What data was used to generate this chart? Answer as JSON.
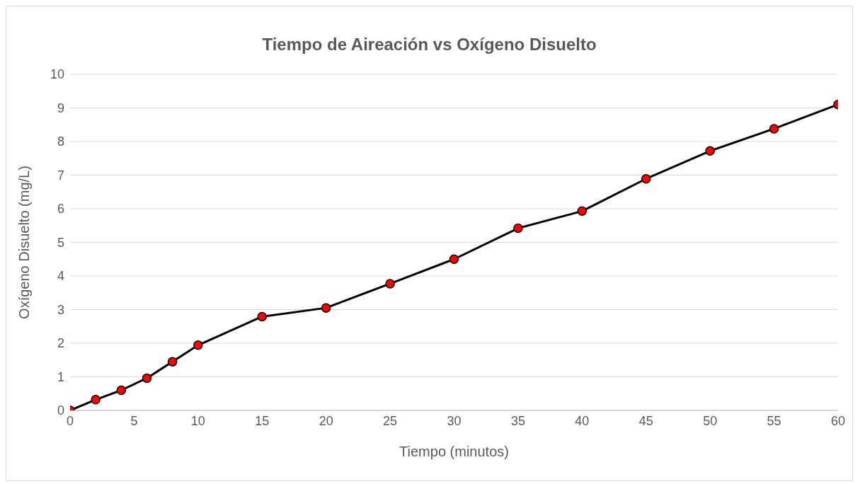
{
  "chart_data": {
    "type": "line",
    "title": "Tiempo de Aireación vs Oxígeno Disuelto",
    "xlabel": "Tiempo (minutos)",
    "ylabel": "Oxígeno Disuelto (mg/L)",
    "x": [
      0,
      2,
      4,
      6,
      8,
      10,
      15,
      20,
      25,
      30,
      35,
      40,
      45,
      50,
      55,
      60
    ],
    "series": [
      {
        "color": "#000000",
        "values": [
          0,
          0.32,
          0.6,
          0.96,
          1.45,
          1.94,
          2.79,
          3.05,
          3.77,
          4.5,
          5.42,
          5.93,
          6.89,
          7.72,
          8.38,
          9.1
        ]
      }
    ],
    "xlim": [
      0,
      60
    ],
    "xticks": [
      0,
      5,
      10,
      15,
      20,
      25,
      30,
      35,
      40,
      45,
      50,
      55,
      60
    ],
    "ylim": [
      0,
      10
    ],
    "yticks": [
      0,
      1,
      2,
      3,
      4,
      5,
      6,
      7,
      8,
      9,
      10
    ],
    "grid": "y",
    "legend": false,
    "marker": "circle",
    "line_style": "solid"
  }
}
